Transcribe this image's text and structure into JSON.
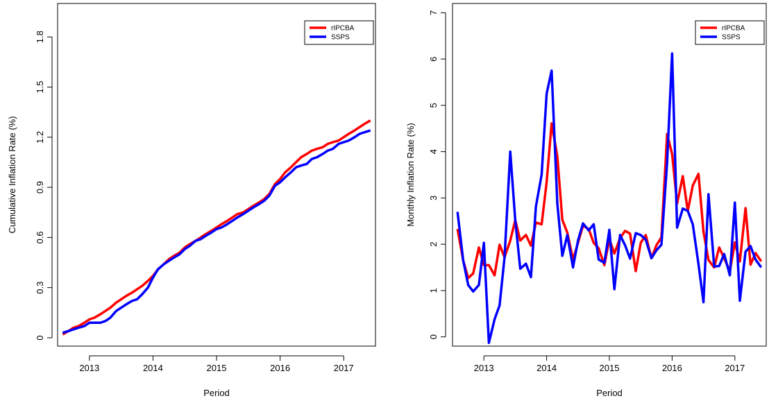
{
  "chart_data": [
    {
      "type": "line",
      "xlabel": "Period",
      "ylabel": "Cumulative Inflation Rate (%)",
      "xlim": [
        2012.5,
        2017.5
      ],
      "ylim": [
        -0.05,
        2.0
      ],
      "x_ticks": [
        2013,
        2014,
        2015,
        2016,
        2017
      ],
      "y_ticks": [
        0,
        0.3,
        0.6,
        0.9,
        1.2,
        1.5,
        1.8
      ],
      "y_tick_labels": [
        "0",
        "0.3",
        "0.6",
        "0.9",
        "1.2",
        "1.5",
        "1.8"
      ],
      "legend_position": "top-right",
      "grid": false,
      "series": [
        {
          "name": "rIPCBA",
          "color": "#ff0000",
          "x": [
            2012.58,
            2012.67,
            2012.75,
            2012.83,
            2012.92,
            2013.0,
            2013.08,
            2013.17,
            2013.25,
            2013.33,
            2013.42,
            2013.5,
            2013.58,
            2013.67,
            2013.75,
            2013.83,
            2013.92,
            2014.0,
            2014.08,
            2014.17,
            2014.25,
            2014.33,
            2014.42,
            2014.5,
            2014.58,
            2014.67,
            2014.75,
            2014.83,
            2014.92,
            2015.0,
            2015.08,
            2015.17,
            2015.25,
            2015.33,
            2015.42,
            2015.5,
            2015.58,
            2015.67,
            2015.75,
            2015.83,
            2015.92,
            2016.0,
            2016.08,
            2016.17,
            2016.25,
            2016.33,
            2016.42,
            2016.5,
            2016.58,
            2016.67,
            2016.75,
            2016.83,
            2016.92,
            2017.0,
            2017.08,
            2017.17,
            2017.25,
            2017.33,
            2017.42
          ],
          "values": [
            0.02,
            0.04,
            0.06,
            0.07,
            0.09,
            0.11,
            0.12,
            0.14,
            0.16,
            0.18,
            0.21,
            0.23,
            0.25,
            0.27,
            0.29,
            0.31,
            0.34,
            0.37,
            0.41,
            0.44,
            0.47,
            0.49,
            0.51,
            0.54,
            0.56,
            0.58,
            0.6,
            0.62,
            0.64,
            0.66,
            0.68,
            0.7,
            0.72,
            0.74,
            0.75,
            0.77,
            0.79,
            0.81,
            0.83,
            0.86,
            0.92,
            0.95,
            0.99,
            1.02,
            1.05,
            1.08,
            1.1,
            1.12,
            1.13,
            1.14,
            1.16,
            1.17,
            1.18,
            1.2,
            1.22,
            1.24,
            1.26,
            1.28,
            1.3
          ]
        },
        {
          "name": "SSPS",
          "color": "#0000ff",
          "x": [
            2012.58,
            2012.67,
            2012.75,
            2012.83,
            2012.92,
            2013.0,
            2013.08,
            2013.17,
            2013.25,
            2013.33,
            2013.42,
            2013.5,
            2013.58,
            2013.67,
            2013.75,
            2013.83,
            2013.92,
            2014.0,
            2014.08,
            2014.17,
            2014.25,
            2014.33,
            2014.42,
            2014.5,
            2014.58,
            2014.67,
            2014.75,
            2014.83,
            2014.92,
            2015.0,
            2015.08,
            2015.17,
            2015.25,
            2015.33,
            2015.42,
            2015.5,
            2015.58,
            2015.67,
            2015.75,
            2015.83,
            2015.92,
            2016.0,
            2016.08,
            2016.17,
            2016.25,
            2016.33,
            2016.42,
            2016.5,
            2016.58,
            2016.67,
            2016.75,
            2016.83,
            2016.92,
            2017.0,
            2017.08,
            2017.17,
            2017.25,
            2017.33,
            2017.42
          ],
          "values": [
            0.03,
            0.04,
            0.05,
            0.06,
            0.07,
            0.09,
            0.09,
            0.09,
            0.1,
            0.12,
            0.16,
            0.18,
            0.2,
            0.22,
            0.23,
            0.26,
            0.3,
            0.36,
            0.41,
            0.44,
            0.46,
            0.48,
            0.5,
            0.53,
            0.55,
            0.58,
            0.59,
            0.61,
            0.63,
            0.65,
            0.66,
            0.68,
            0.7,
            0.72,
            0.74,
            0.76,
            0.78,
            0.8,
            0.82,
            0.85,
            0.91,
            0.93,
            0.96,
            0.99,
            1.02,
            1.03,
            1.04,
            1.07,
            1.08,
            1.1,
            1.12,
            1.13,
            1.16,
            1.17,
            1.18,
            1.2,
            1.22,
            1.23,
            1.24
          ]
        }
      ]
    },
    {
      "type": "line",
      "xlabel": "Period",
      "ylabel": "Monthly Inflation Rate (%)",
      "xlim": [
        2012.5,
        2017.5
      ],
      "ylim": [
        -0.2,
        7.2
      ],
      "x_ticks": [
        2013,
        2014,
        2015,
        2016,
        2017
      ],
      "y_ticks": [
        0,
        1,
        2,
        3,
        4,
        5,
        6,
        7
      ],
      "y_tick_labels": [
        "0",
        "1",
        "2",
        "3",
        "4",
        "5",
        "6",
        "7"
      ],
      "legend_position": "top-right",
      "grid": false,
      "series": [
        {
          "name": "rIPCBA",
          "color": "#ff0000",
          "x": [
            2012.58,
            2012.67,
            2012.75,
            2012.83,
            2012.92,
            2013.0,
            2013.08,
            2013.17,
            2013.25,
            2013.33,
            2013.42,
            2013.5,
            2013.58,
            2013.67,
            2013.75,
            2013.83,
            2013.92,
            2014.0,
            2014.08,
            2014.17,
            2014.25,
            2014.33,
            2014.42,
            2014.5,
            2014.58,
            2014.67,
            2014.75,
            2014.83,
            2014.92,
            2015.0,
            2015.08,
            2015.17,
            2015.25,
            2015.33,
            2015.42,
            2015.5,
            2015.58,
            2015.67,
            2015.75,
            2015.83,
            2015.92,
            2016.0,
            2016.08,
            2016.17,
            2016.25,
            2016.33,
            2016.42,
            2016.5,
            2016.58,
            2016.67,
            2016.75,
            2016.83,
            2016.92,
            2017.0,
            2017.08,
            2017.17,
            2017.25,
            2017.33,
            2017.42
          ],
          "values": [
            2.33,
            1.65,
            1.27,
            1.37,
            1.93,
            1.55,
            1.55,
            1.33,
            1.99,
            1.72,
            2.08,
            2.52,
            2.08,
            2.2,
            1.97,
            2.47,
            2.43,
            3.34,
            4.61,
            3.9,
            2.53,
            2.25,
            1.67,
            2.03,
            2.4,
            2.33,
            2.03,
            1.91,
            1.55,
            2.11,
            1.8,
            2.13,
            2.29,
            2.23,
            1.42,
            2.03,
            2.2,
            1.7,
            1.98,
            2.15,
            4.38,
            3.95,
            2.88,
            3.47,
            2.72,
            3.27,
            3.52,
            2.27,
            1.66,
            1.5,
            1.93,
            1.7,
            1.42,
            2.04,
            1.63,
            2.78,
            1.56,
            1.81,
            1.63
          ]
        },
        {
          "name": "SSPS",
          "color": "#0000ff",
          "x": [
            2012.58,
            2012.67,
            2012.75,
            2012.83,
            2012.92,
            2013.0,
            2013.08,
            2013.17,
            2013.25,
            2013.33,
            2013.42,
            2013.5,
            2013.58,
            2013.67,
            2013.75,
            2013.83,
            2013.92,
            2014.0,
            2014.08,
            2014.17,
            2014.25,
            2014.33,
            2014.42,
            2014.5,
            2014.58,
            2014.67,
            2014.75,
            2014.83,
            2014.92,
            2015.0,
            2015.08,
            2015.17,
            2015.25,
            2015.33,
            2015.42,
            2015.5,
            2015.58,
            2015.67,
            2015.75,
            2015.83,
            2015.92,
            2016.0,
            2016.08,
            2016.17,
            2016.25,
            2016.33,
            2016.42,
            2016.5,
            2016.58,
            2016.67,
            2016.75,
            2016.83,
            2016.92,
            2017.0,
            2017.08,
            2017.17,
            2017.25,
            2017.33,
            2017.42
          ],
          "values": [
            2.7,
            1.65,
            1.12,
            0.98,
            1.12,
            2.03,
            -0.13,
            0.38,
            0.68,
            1.72,
            4.0,
            2.52,
            1.47,
            1.58,
            1.29,
            2.82,
            3.5,
            5.25,
            5.75,
            2.88,
            1.75,
            2.2,
            1.5,
            2.08,
            2.45,
            2.3,
            2.43,
            1.67,
            1.6,
            2.31,
            1.03,
            2.2,
            1.98,
            1.69,
            2.24,
            2.2,
            2.1,
            1.7,
            1.87,
            1.99,
            3.77,
            6.12,
            2.36,
            2.77,
            2.72,
            2.43,
            1.57,
            0.75,
            3.08,
            1.52,
            1.53,
            1.79,
            1.33,
            2.9,
            0.78,
            1.84,
            1.96,
            1.67,
            1.5
          ]
        }
      ]
    }
  ]
}
